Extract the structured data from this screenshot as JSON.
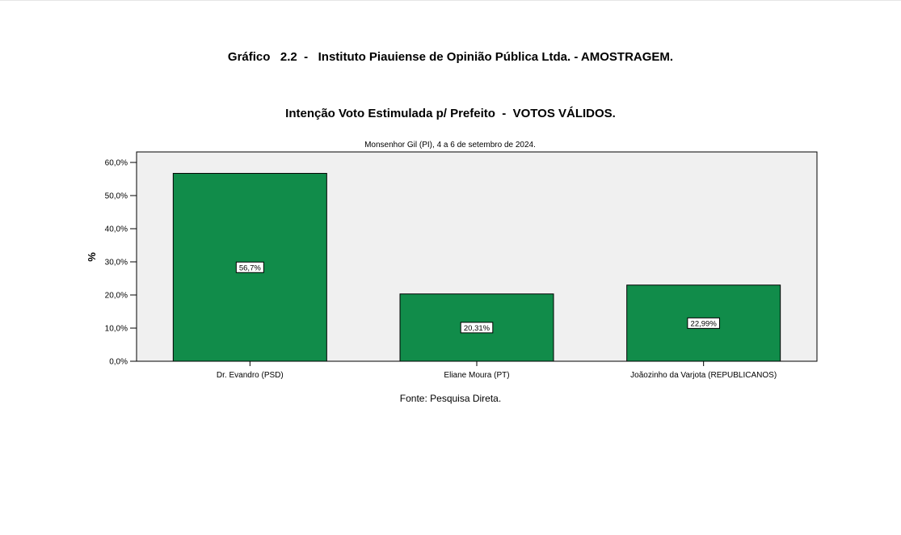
{
  "page": {
    "main_title": "Gráfico   2.2  -   Instituto Piauiense de Opinião Pública Ltda. - AMOSTRAGEM.",
    "source": "Fonte: Pesquisa Direta."
  },
  "chart_data": {
    "type": "bar",
    "title": "Intenção Voto Estimulada p/ Prefeito  -  VOTOS VÁLIDOS.",
    "subtitle": "Monsenhor Gil (PI), 4 a 6 de setembro de 2024.",
    "ylabel": "%",
    "xlabel": "",
    "categories": [
      "Dr. Evandro (PSD)",
      "Eliane Moura (PT)",
      "Joãozinho da Varjota (REPUBLICANOS)"
    ],
    "values": [
      56.7,
      20.31,
      22.99
    ],
    "data_labels": [
      "56,7%",
      "20,31%",
      "22,99%"
    ],
    "ylim": [
      0,
      60
    ],
    "yticks": [
      0,
      10,
      20,
      30,
      40,
      50,
      60
    ],
    "ytick_labels": [
      "0,0%",
      "10,0%",
      "20,0%",
      "30,0%",
      "40,0%",
      "50,0%",
      "60,0%"
    ],
    "bar_color": "#118c4a",
    "plot_background": "#f0f0f0",
    "grid": false,
    "legend": "none"
  }
}
